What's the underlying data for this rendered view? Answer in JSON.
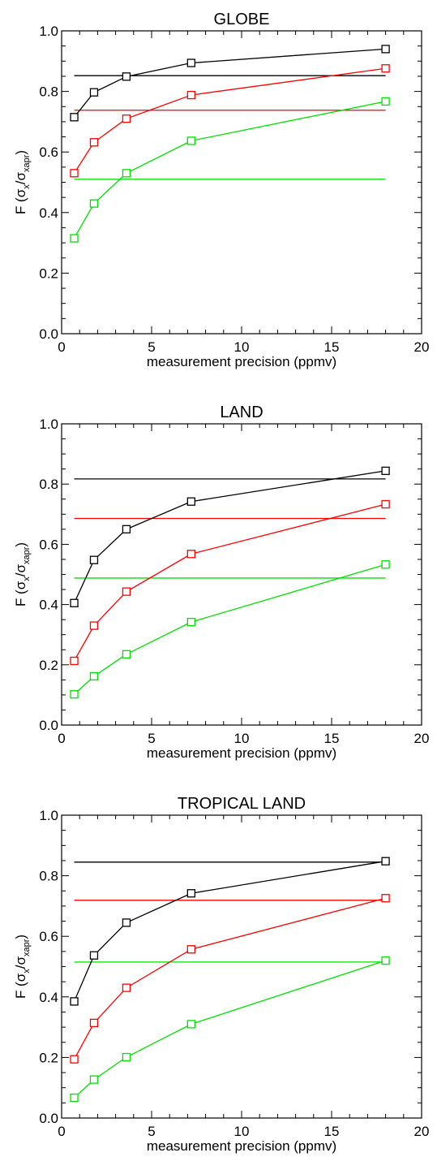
{
  "chart_data": [
    {
      "type": "line",
      "title": "GLOBE",
      "xlabel": "measurement precision (ppmv)",
      "ylabel": {
        "prefix": "F (",
        "sigma": "σ",
        "sub_x": "x",
        "slash": "/",
        "sub_xapr": "xapr",
        "suffix": ")"
      },
      "xlim": [
        0,
        20
      ],
      "ylim": [
        0,
        1
      ],
      "xticks": [
        "0",
        "5",
        "10",
        "15",
        "20"
      ],
      "yticks": [
        "0.0",
        "0.2",
        "0.4",
        "0.6",
        "0.8",
        "1.0"
      ],
      "series": [
        {
          "color": "#000000",
          "x": [
            0.7,
            1.8,
            3.6,
            7.2,
            18
          ],
          "y": [
            0.715,
            0.797,
            0.849,
            0.894,
            0.94
          ]
        },
        {
          "color": "#ff0000",
          "x": [
            0.7,
            1.8,
            3.6,
            7.2,
            18
          ],
          "y": [
            0.53,
            0.632,
            0.71,
            0.788,
            0.876
          ]
        },
        {
          "color": "#00e000",
          "x": [
            0.7,
            1.8,
            3.6,
            7.2,
            18
          ],
          "y": [
            0.315,
            0.43,
            0.53,
            0.637,
            0.767
          ]
        }
      ],
      "hlines": [
        {
          "color": "#000000",
          "y": 0.852,
          "x": [
            0.7,
            18
          ]
        },
        {
          "color": "#ff0000",
          "y": 0.738,
          "x": [
            0.7,
            18
          ]
        },
        {
          "color": "#00e000",
          "y": 0.51,
          "x": [
            0.7,
            18
          ]
        }
      ]
    },
    {
      "type": "line",
      "title": "LAND",
      "xlabel": "measurement precision (ppmv)",
      "ylabel": {
        "prefix": "F (",
        "sigma": "σ",
        "sub_x": "x",
        "slash": "/",
        "sub_xapr": "xapr",
        "suffix": ")"
      },
      "xlim": [
        0,
        20
      ],
      "ylim": [
        0,
        1
      ],
      "xticks": [
        "0",
        "5",
        "10",
        "15",
        "20"
      ],
      "yticks": [
        "0.0",
        "0.2",
        "0.4",
        "0.6",
        "0.8",
        "1.0"
      ],
      "series": [
        {
          "color": "#000000",
          "x": [
            0.7,
            1.8,
            3.6,
            7.2,
            18
          ],
          "y": [
            0.405,
            0.548,
            0.65,
            0.742,
            0.844
          ]
        },
        {
          "color": "#ff0000",
          "x": [
            0.7,
            1.8,
            3.6,
            7.2,
            18
          ],
          "y": [
            0.213,
            0.33,
            0.443,
            0.568,
            0.733
          ]
        },
        {
          "color": "#00e000",
          "x": [
            0.7,
            1.8,
            3.6,
            7.2,
            18
          ],
          "y": [
            0.102,
            0.162,
            0.235,
            0.342,
            0.533
          ]
        }
      ],
      "hlines": [
        {
          "color": "#000000",
          "y": 0.817,
          "x": [
            0.7,
            18
          ]
        },
        {
          "color": "#ff0000",
          "y": 0.686,
          "x": [
            0.7,
            18
          ]
        },
        {
          "color": "#00e000",
          "y": 0.488,
          "x": [
            0.7,
            18
          ]
        }
      ]
    },
    {
      "type": "line",
      "title": "TROPICAL LAND",
      "xlabel": "measurement precision (ppmv)",
      "ylabel": {
        "prefix": "F (",
        "sigma": "σ",
        "sub_x": "x",
        "slash": "/",
        "sub_xapr": "xapr",
        "suffix": ")"
      },
      "xlim": [
        0,
        20
      ],
      "ylim": [
        0,
        1
      ],
      "xticks": [
        "0",
        "5",
        "10",
        "15",
        "20"
      ],
      "yticks": [
        "0.0",
        "0.2",
        "0.4",
        "0.6",
        "0.8",
        "1.0"
      ],
      "series": [
        {
          "color": "#000000",
          "x": [
            0.7,
            1.8,
            3.6,
            7.2,
            18
          ],
          "y": [
            0.385,
            0.537,
            0.645,
            0.742,
            0.848
          ]
        },
        {
          "color": "#ff0000",
          "x": [
            0.7,
            1.8,
            3.6,
            7.2,
            18
          ],
          "y": [
            0.194,
            0.314,
            0.43,
            0.557,
            0.726
          ]
        },
        {
          "color": "#00e000",
          "x": [
            0.7,
            1.8,
            3.6,
            7.2,
            18
          ],
          "y": [
            0.067,
            0.127,
            0.201,
            0.31,
            0.52
          ]
        }
      ],
      "hlines": [
        {
          "color": "#000000",
          "y": 0.845,
          "x": [
            0.7,
            18
          ]
        },
        {
          "color": "#ff0000",
          "y": 0.719,
          "x": [
            0.7,
            18
          ]
        },
        {
          "color": "#00e000",
          "y": 0.515,
          "x": [
            0.7,
            18
          ]
        }
      ]
    }
  ]
}
